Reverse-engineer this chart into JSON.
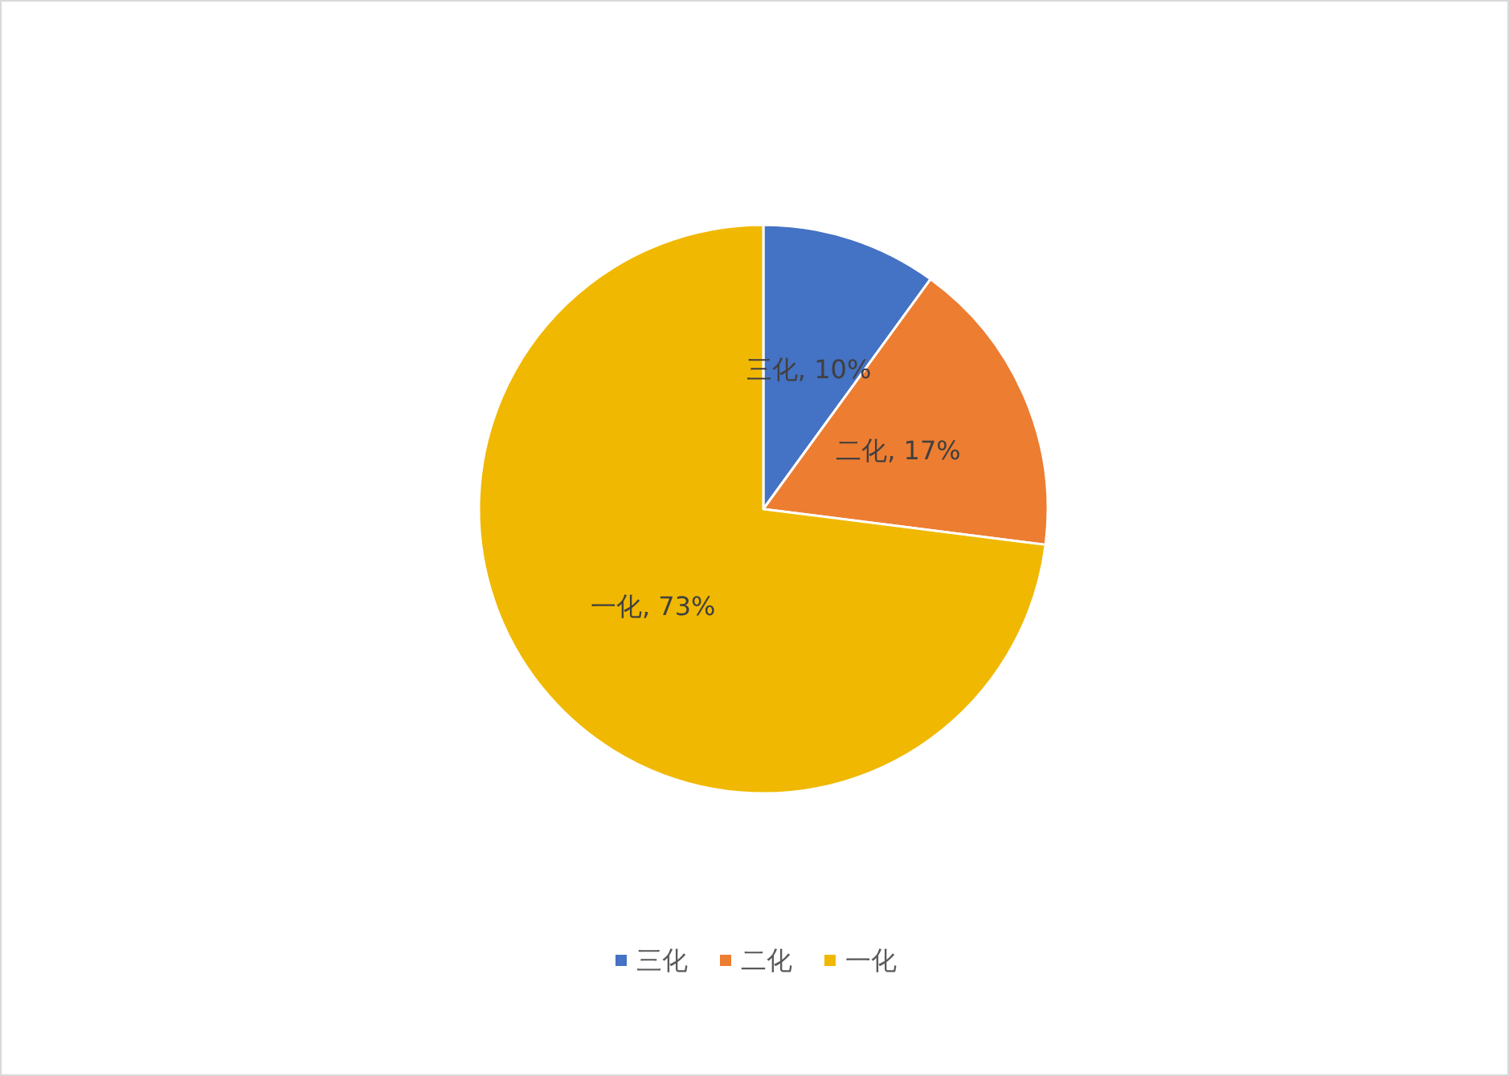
{
  "chart_data": {
    "type": "pie",
    "categories": [
      "三化",
      "二化",
      "一化"
    ],
    "values": [
      10,
      17,
      73
    ],
    "value_labels": [
      "三化, 10%",
      "二化, 17%",
      "一化, 73%"
    ],
    "colors": [
      "#4472c4",
      "#ed7d31",
      "#f0b800"
    ],
    "legend": "bottom"
  }
}
